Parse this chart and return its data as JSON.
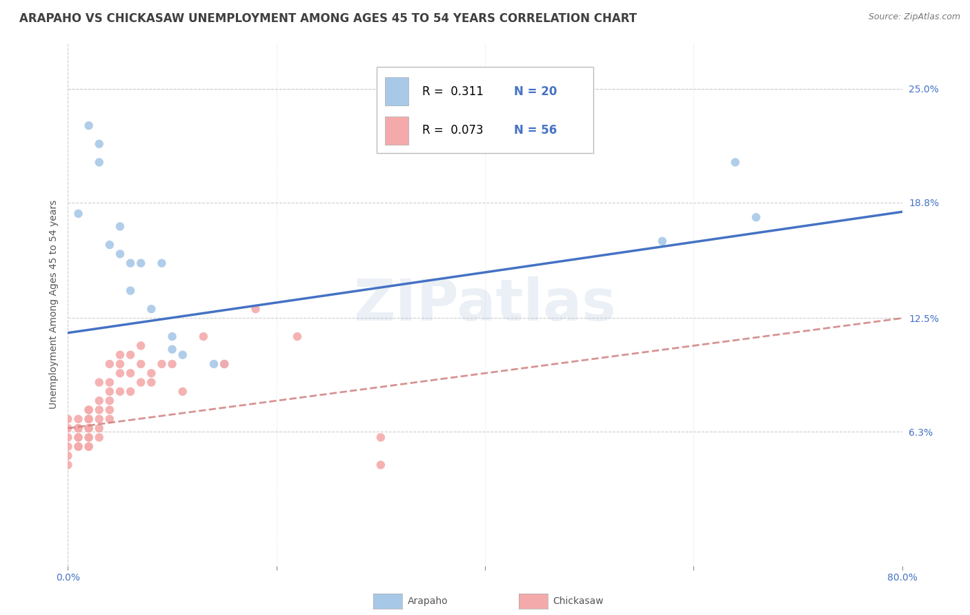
{
  "title": "ARAPAHO VS CHICKASAW UNEMPLOYMENT AMONG AGES 45 TO 54 YEARS CORRELATION CHART",
  "source": "Source: ZipAtlas.com",
  "ylabel": "Unemployment Among Ages 45 to 54 years",
  "xlim": [
    0.0,
    0.8
  ],
  "ylim": [
    -0.01,
    0.275
  ],
  "ytick_positions": [
    0.063,
    0.125,
    0.188,
    0.25
  ],
  "ytick_labels": [
    "6.3%",
    "12.5%",
    "18.8%",
    "25.0%"
  ],
  "watermark": "ZIPatlas",
  "legend_r1": "R =  0.311",
  "legend_n1": "N = 20",
  "legend_r2": "R =  0.073",
  "legend_n2": "N = 56",
  "arapaho_color": "#A8C8E8",
  "chickasaw_color": "#F4AAAA",
  "arapaho_line_color": "#4472C4",
  "chickasaw_line_color": "#E8808080",
  "arapaho_x": [
    0.01,
    0.02,
    0.03,
    0.03,
    0.04,
    0.05,
    0.05,
    0.06,
    0.06,
    0.07,
    0.08,
    0.09,
    0.1,
    0.1,
    0.11,
    0.14,
    0.15,
    0.57,
    0.64,
    0.66
  ],
  "arapaho_y": [
    0.182,
    0.23,
    0.21,
    0.22,
    0.165,
    0.175,
    0.16,
    0.155,
    0.14,
    0.155,
    0.13,
    0.155,
    0.108,
    0.115,
    0.105,
    0.1,
    0.1,
    0.167,
    0.21,
    0.18
  ],
  "chickasaw_x": [
    0.0,
    0.0,
    0.0,
    0.0,
    0.0,
    0.0,
    0.01,
    0.01,
    0.01,
    0.01,
    0.01,
    0.01,
    0.01,
    0.02,
    0.02,
    0.02,
    0.02,
    0.02,
    0.02,
    0.02,
    0.02,
    0.02,
    0.02,
    0.03,
    0.03,
    0.03,
    0.03,
    0.03,
    0.03,
    0.04,
    0.04,
    0.04,
    0.04,
    0.04,
    0.04,
    0.05,
    0.05,
    0.05,
    0.05,
    0.06,
    0.06,
    0.06,
    0.07,
    0.07,
    0.07,
    0.08,
    0.08,
    0.09,
    0.1,
    0.11,
    0.13,
    0.15,
    0.18,
    0.22,
    0.3,
    0.3
  ],
  "chickasaw_y": [
    0.055,
    0.06,
    0.065,
    0.07,
    0.05,
    0.045,
    0.055,
    0.06,
    0.065,
    0.07,
    0.065,
    0.06,
    0.055,
    0.055,
    0.06,
    0.065,
    0.07,
    0.075,
    0.06,
    0.055,
    0.07,
    0.065,
    0.075,
    0.06,
    0.065,
    0.07,
    0.08,
    0.075,
    0.09,
    0.07,
    0.08,
    0.09,
    0.1,
    0.075,
    0.085,
    0.085,
    0.095,
    0.105,
    0.1,
    0.085,
    0.095,
    0.105,
    0.09,
    0.1,
    0.11,
    0.09,
    0.095,
    0.1,
    0.1,
    0.085,
    0.115,
    0.1,
    0.13,
    0.115,
    0.06,
    0.045
  ],
  "arapaho_trend_x": [
    0.0,
    0.8
  ],
  "arapaho_trend_y": [
    0.117,
    0.183
  ],
  "chickasaw_trend_x": [
    0.0,
    0.8
  ],
  "chickasaw_trend_y": [
    0.065,
    0.125
  ],
  "grid_color": "#CCCCCC",
  "background_color": "#FFFFFF",
  "title_fontsize": 12,
  "axis_label_fontsize": 10,
  "tick_fontsize": 10,
  "legend_fontsize": 12,
  "scatter_size": 80
}
